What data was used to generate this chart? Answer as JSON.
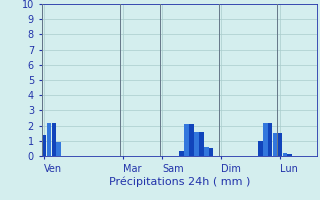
{
  "title": "Précipitations 24h ( mm )",
  "ylim": [
    0,
    10
  ],
  "yticks": [
    0,
    1,
    2,
    3,
    4,
    5,
    6,
    7,
    8,
    9,
    10
  ],
  "background_color": "#d4eeee",
  "bar_color_dark": "#1144bb",
  "bar_color_light": "#3377dd",
  "grid_color": "#aacccc",
  "axis_color": "#2233aa",
  "text_color": "#2233aa",
  "n_bars": 56,
  "bar_values": [
    1.4,
    2.2,
    2.2,
    0.9,
    0,
    0,
    0,
    0,
    0,
    0,
    0,
    0,
    0,
    0,
    0,
    0,
    0,
    0,
    0,
    0,
    0,
    0,
    0,
    0,
    0,
    0,
    0,
    0,
    0.3,
    2.1,
    2.1,
    1.6,
    1.6,
    0.6,
    0.5,
    0,
    0,
    0,
    0,
    0,
    0,
    0,
    0,
    0,
    1.0,
    2.2,
    2.2,
    1.5,
    1.5,
    0.2,
    0.1,
    0,
    0,
    0,
    0,
    0
  ],
  "day_labels": [
    "Ven",
    "Mar",
    "Sam",
    "Dim",
    "Lun"
  ],
  "day_x": [
    0,
    16,
    24,
    36,
    48
  ],
  "vline_x": [
    -0.5,
    15.5,
    23.5,
    35.5,
    47.5
  ],
  "tick_fontsize": 7,
  "label_fontsize": 8
}
